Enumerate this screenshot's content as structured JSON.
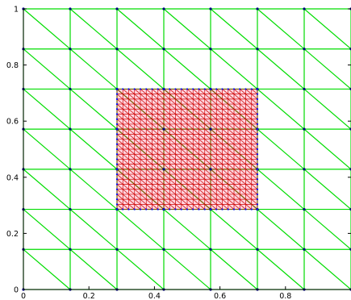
{
  "chart_data": {
    "type": "scatter",
    "title": "",
    "xlabel": "",
    "ylabel": "",
    "xlim": [
      0,
      1.0
    ],
    "ylim": [
      0,
      1.0
    ],
    "x_ticks": [
      0,
      0.2,
      0.4,
      0.6,
      0.8
    ],
    "x_tick_labels": [
      "0",
      "0.2",
      "0.4",
      "0.6",
      "0.8"
    ],
    "y_ticks": [
      0,
      0.2,
      0.4,
      0.6,
      0.8,
      1
    ],
    "y_tick_labels": [
      "0",
      "0.2",
      "0.4",
      "0.6",
      "0.8",
      "1"
    ],
    "grid": false,
    "legend": "none",
    "coarse_mesh": {
      "color": "#00dd00",
      "node_color": "#000080",
      "nodes_per_side": 8,
      "spacing": 0.142857,
      "diagonal": "descending"
    },
    "fine_mesh": {
      "color": "#cc0000",
      "fill": "#ffd6e0",
      "boundary_node_color": "#0000ff",
      "xrange": [
        0.285714,
        0.714286
      ],
      "yrange": [
        0.285714,
        0.714286
      ],
      "cells_per_side": 24,
      "diagonal": "descending"
    }
  }
}
